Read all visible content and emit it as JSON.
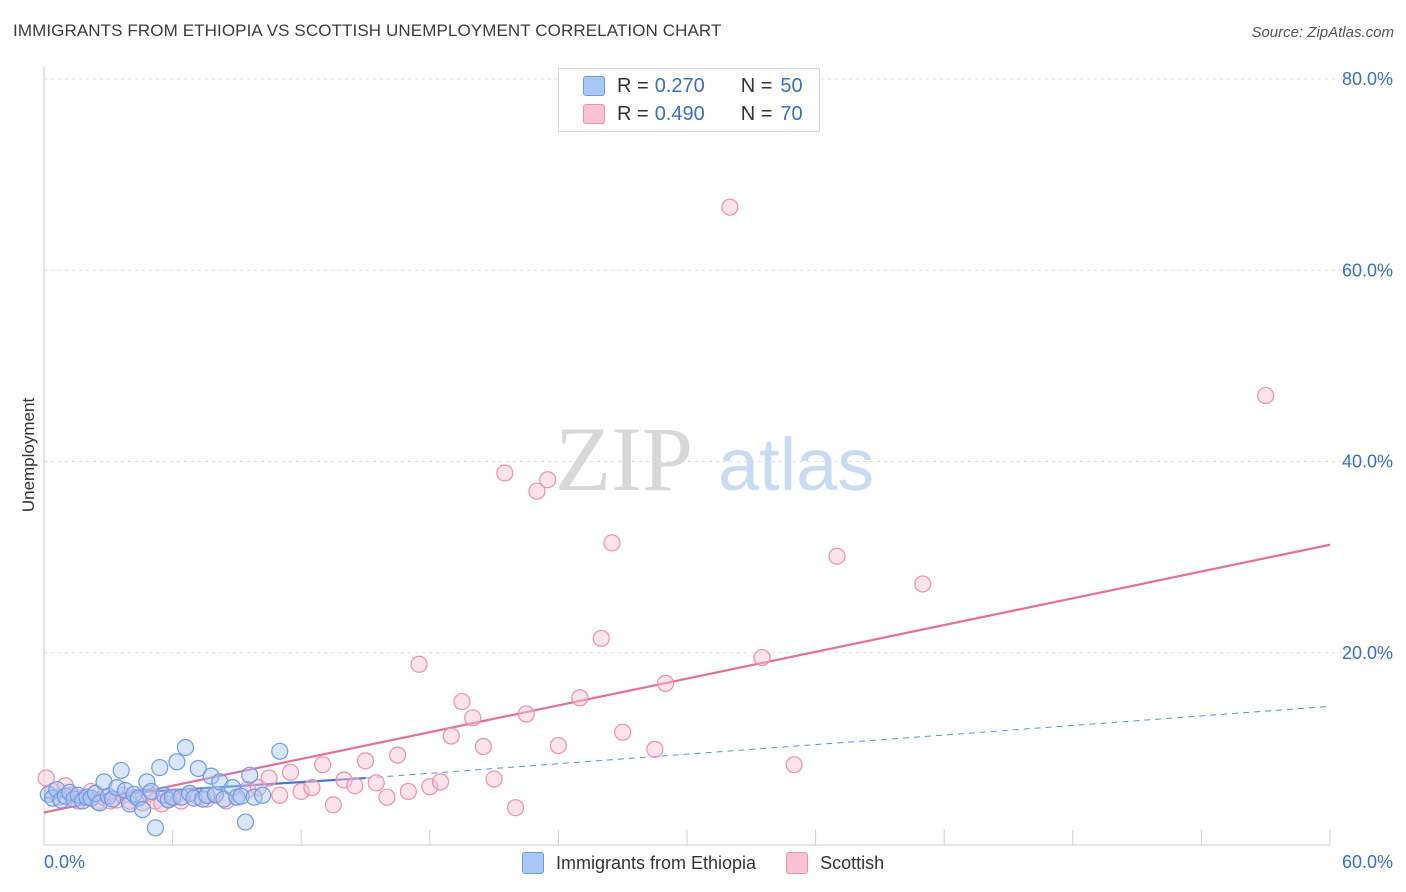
{
  "header": {
    "title": "IMMIGRANTS FROM ETHIOPIA VS SCOTTISH UNEMPLOYMENT CORRELATION CHART",
    "source": "Source: ZipAtlas.com"
  },
  "watermark": {
    "zip": "ZIP",
    "atlas": "atlas"
  },
  "legend_top": {
    "rows": [
      {
        "r_label": "R =",
        "r_value": "0.270",
        "n_label": "N =",
        "n_value": "50",
        "color": "#a9c8f5",
        "border": "#6d9be0"
      },
      {
        "r_label": "R =",
        "r_value": "0.490",
        "n_label": "N =",
        "n_value": "70",
        "color": "#f9c2d4",
        "border": "#ee8fb0"
      }
    ]
  },
  "legend_bottom": {
    "items": [
      {
        "label": "Immigrants from Ethiopia",
        "color": "#a9c8f5",
        "border": "#6d9be0"
      },
      {
        "label": "Scottish",
        "color": "#f9c2d4",
        "border": "#ee8fb0"
      }
    ]
  },
  "chart_data": {
    "type": "scatter",
    "title": "IMMIGRANTS FROM ETHIOPIA VS SCOTTISH UNEMPLOYMENT CORRELATION CHART",
    "xlabel": "",
    "ylabel": "Unemployment",
    "xlim": [
      0,
      60
    ],
    "ylim": [
      0,
      80
    ],
    "x_tick_labels": [
      "0.0%",
      "60.0%"
    ],
    "y_ticks": [
      20,
      40,
      60,
      80
    ],
    "y_tick_labels": [
      "20.0%",
      "40.0%",
      "60.0%",
      "80.0%"
    ],
    "grid": true,
    "legend_position": "top-center",
    "series": [
      {
        "name": "Immigrants from Ethiopia",
        "color": "#6d9be0",
        "fill": "#a9c8f5",
        "points": [
          [
            0.2,
            5.3
          ],
          [
            0.4,
            4.9
          ],
          [
            0.6,
            5.8
          ],
          [
            0.8,
            4.7
          ],
          [
            1.0,
            5.1
          ],
          [
            1.2,
            5.5
          ],
          [
            1.4,
            4.8
          ],
          [
            1.6,
            5.2
          ],
          [
            1.8,
            4.6
          ],
          [
            2.0,
            5.0
          ],
          [
            2.2,
            4.9
          ],
          [
            2.4,
            5.4
          ],
          [
            2.6,
            4.4
          ],
          [
            2.8,
            6.6
          ],
          [
            3.0,
            5.1
          ],
          [
            3.2,
            4.8
          ],
          [
            3.4,
            6.0
          ],
          [
            3.6,
            7.8
          ],
          [
            3.8,
            5.7
          ],
          [
            4.0,
            4.3
          ],
          [
            4.2,
            5.3
          ],
          [
            4.4,
            4.9
          ],
          [
            4.6,
            3.7
          ],
          [
            4.8,
            6.6
          ],
          [
            5.0,
            5.6
          ],
          [
            5.2,
            1.8
          ],
          [
            5.4,
            8.1
          ],
          [
            5.6,
            5.2
          ],
          [
            5.8,
            4.7
          ],
          [
            6.0,
            5.0
          ],
          [
            6.2,
            8.7
          ],
          [
            6.4,
            5.0
          ],
          [
            6.6,
            10.2
          ],
          [
            6.8,
            5.4
          ],
          [
            7.0,
            4.9
          ],
          [
            7.2,
            8.0
          ],
          [
            7.4,
            4.8
          ],
          [
            7.6,
            5.2
          ],
          [
            7.8,
            7.2
          ],
          [
            8.0,
            5.3
          ],
          [
            8.2,
            6.6
          ],
          [
            8.4,
            4.8
          ],
          [
            8.8,
            6.0
          ],
          [
            9.0,
            5.0
          ],
          [
            9.2,
            5.1
          ],
          [
            9.4,
            2.4
          ],
          [
            9.6,
            7.3
          ],
          [
            9.8,
            5.0
          ],
          [
            10.2,
            5.2
          ],
          [
            11.0,
            9.8
          ]
        ],
        "trend": {
          "x0": 0,
          "y0": 4.9,
          "x1": 15,
          "y1": 7.0,
          "dash_x1": 60,
          "dash_y1": 14.5
        }
      },
      {
        "name": "Scottish",
        "color": "#ee8fb0",
        "fill": "#f9c2d4",
        "points": [
          [
            0.1,
            7.0
          ],
          [
            0.4,
            5.6
          ],
          [
            0.7,
            5.0
          ],
          [
            1.0,
            6.2
          ],
          [
            1.3,
            5.2
          ],
          [
            1.6,
            4.6
          ],
          [
            1.9,
            5.0
          ],
          [
            2.2,
            5.6
          ],
          [
            2.5,
            4.5
          ],
          [
            2.8,
            5.0
          ],
          [
            3.1,
            4.6
          ],
          [
            3.4,
            4.7
          ],
          [
            3.7,
            5.2
          ],
          [
            4.0,
            4.6
          ],
          [
            4.3,
            5.0
          ],
          [
            4.6,
            4.4
          ],
          [
            4.9,
            5.4
          ],
          [
            5.2,
            4.6
          ],
          [
            5.5,
            4.3
          ],
          [
            5.8,
            4.8
          ],
          [
            6.1,
            5.0
          ],
          [
            6.4,
            4.6
          ],
          [
            6.8,
            5.4
          ],
          [
            7.2,
            5.0
          ],
          [
            7.6,
            4.8
          ],
          [
            8.0,
            5.2
          ],
          [
            8.5,
            4.6
          ],
          [
            9.0,
            5.0
          ],
          [
            9.5,
            5.8
          ],
          [
            10.0,
            6.0
          ],
          [
            10.5,
            7.0
          ],
          [
            11.0,
            5.2
          ],
          [
            11.5,
            7.6
          ],
          [
            12.0,
            5.6
          ],
          [
            12.5,
            6.0
          ],
          [
            13.0,
            8.4
          ],
          [
            13.5,
            4.2
          ],
          [
            14.0,
            6.8
          ],
          [
            14.5,
            6.2
          ],
          [
            15.0,
            8.8
          ],
          [
            15.5,
            6.5
          ],
          [
            16.0,
            5.0
          ],
          [
            16.5,
            9.4
          ],
          [
            17.0,
            5.6
          ],
          [
            17.5,
            18.9
          ],
          [
            18.0,
            6.1
          ],
          [
            18.5,
            6.6
          ],
          [
            19.0,
            11.4
          ],
          [
            19.5,
            15.0
          ],
          [
            20.0,
            13.3
          ],
          [
            20.5,
            10.3
          ],
          [
            21.0,
            6.9
          ],
          [
            21.5,
            38.9
          ],
          [
            22.0,
            3.9
          ],
          [
            22.5,
            13.7
          ],
          [
            23.0,
            37.0
          ],
          [
            23.5,
            38.2
          ],
          [
            24.0,
            10.4
          ],
          [
            25.0,
            15.4
          ],
          [
            26.0,
            21.6
          ],
          [
            26.5,
            31.6
          ],
          [
            27.0,
            11.8
          ],
          [
            28.5,
            10.0
          ],
          [
            29.0,
            16.9
          ],
          [
            32.0,
            66.7
          ],
          [
            33.5,
            19.6
          ],
          [
            35.0,
            8.4
          ],
          [
            37.0,
            30.2
          ],
          [
            41.0,
            27.3
          ],
          [
            57.0,
            47.0
          ]
        ],
        "trend": {
          "x0": 0,
          "y0": 3.4,
          "x1": 60,
          "y1": 31.4
        }
      }
    ]
  }
}
